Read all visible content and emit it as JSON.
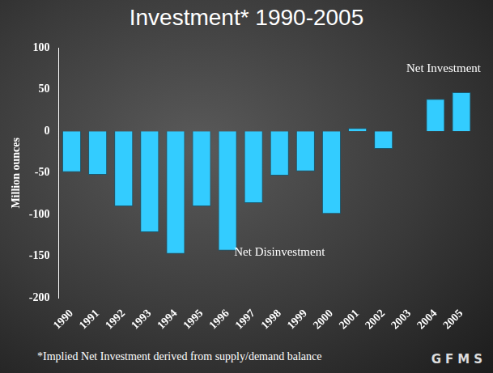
{
  "chart_data": {
    "type": "bar",
    "title": "Investment* 1990-2005",
    "y_label": "Million ounces",
    "categories": [
      "1990",
      "1991",
      "1992",
      "1993",
      "1994",
      "1995",
      "1996",
      "1997",
      "1998",
      "1999",
      "2000",
      "2001",
      "2002",
      "2003",
      "2004",
      "2005"
    ],
    "values": [
      -49,
      -52,
      -90,
      -121,
      -147,
      -90,
      -143,
      -86,
      -53,
      -48,
      -99,
      4,
      -21,
      0,
      39,
      47
    ],
    "color": "#33ccff",
    "ylim": [
      -200,
      100
    ],
    "yticks": [
      -200,
      -150,
      -100,
      -50,
      0,
      50,
      100
    ],
    "grid": false,
    "annotations": [
      {
        "text": "Net Investment",
        "x": "2005",
        "y": 75
      },
      {
        "text": "Net Disinvestment",
        "x": "1998",
        "y": -145
      }
    ],
    "footnote": "*Implied Net Investment derived from supply/demand balance",
    "logo": "GFMS"
  }
}
